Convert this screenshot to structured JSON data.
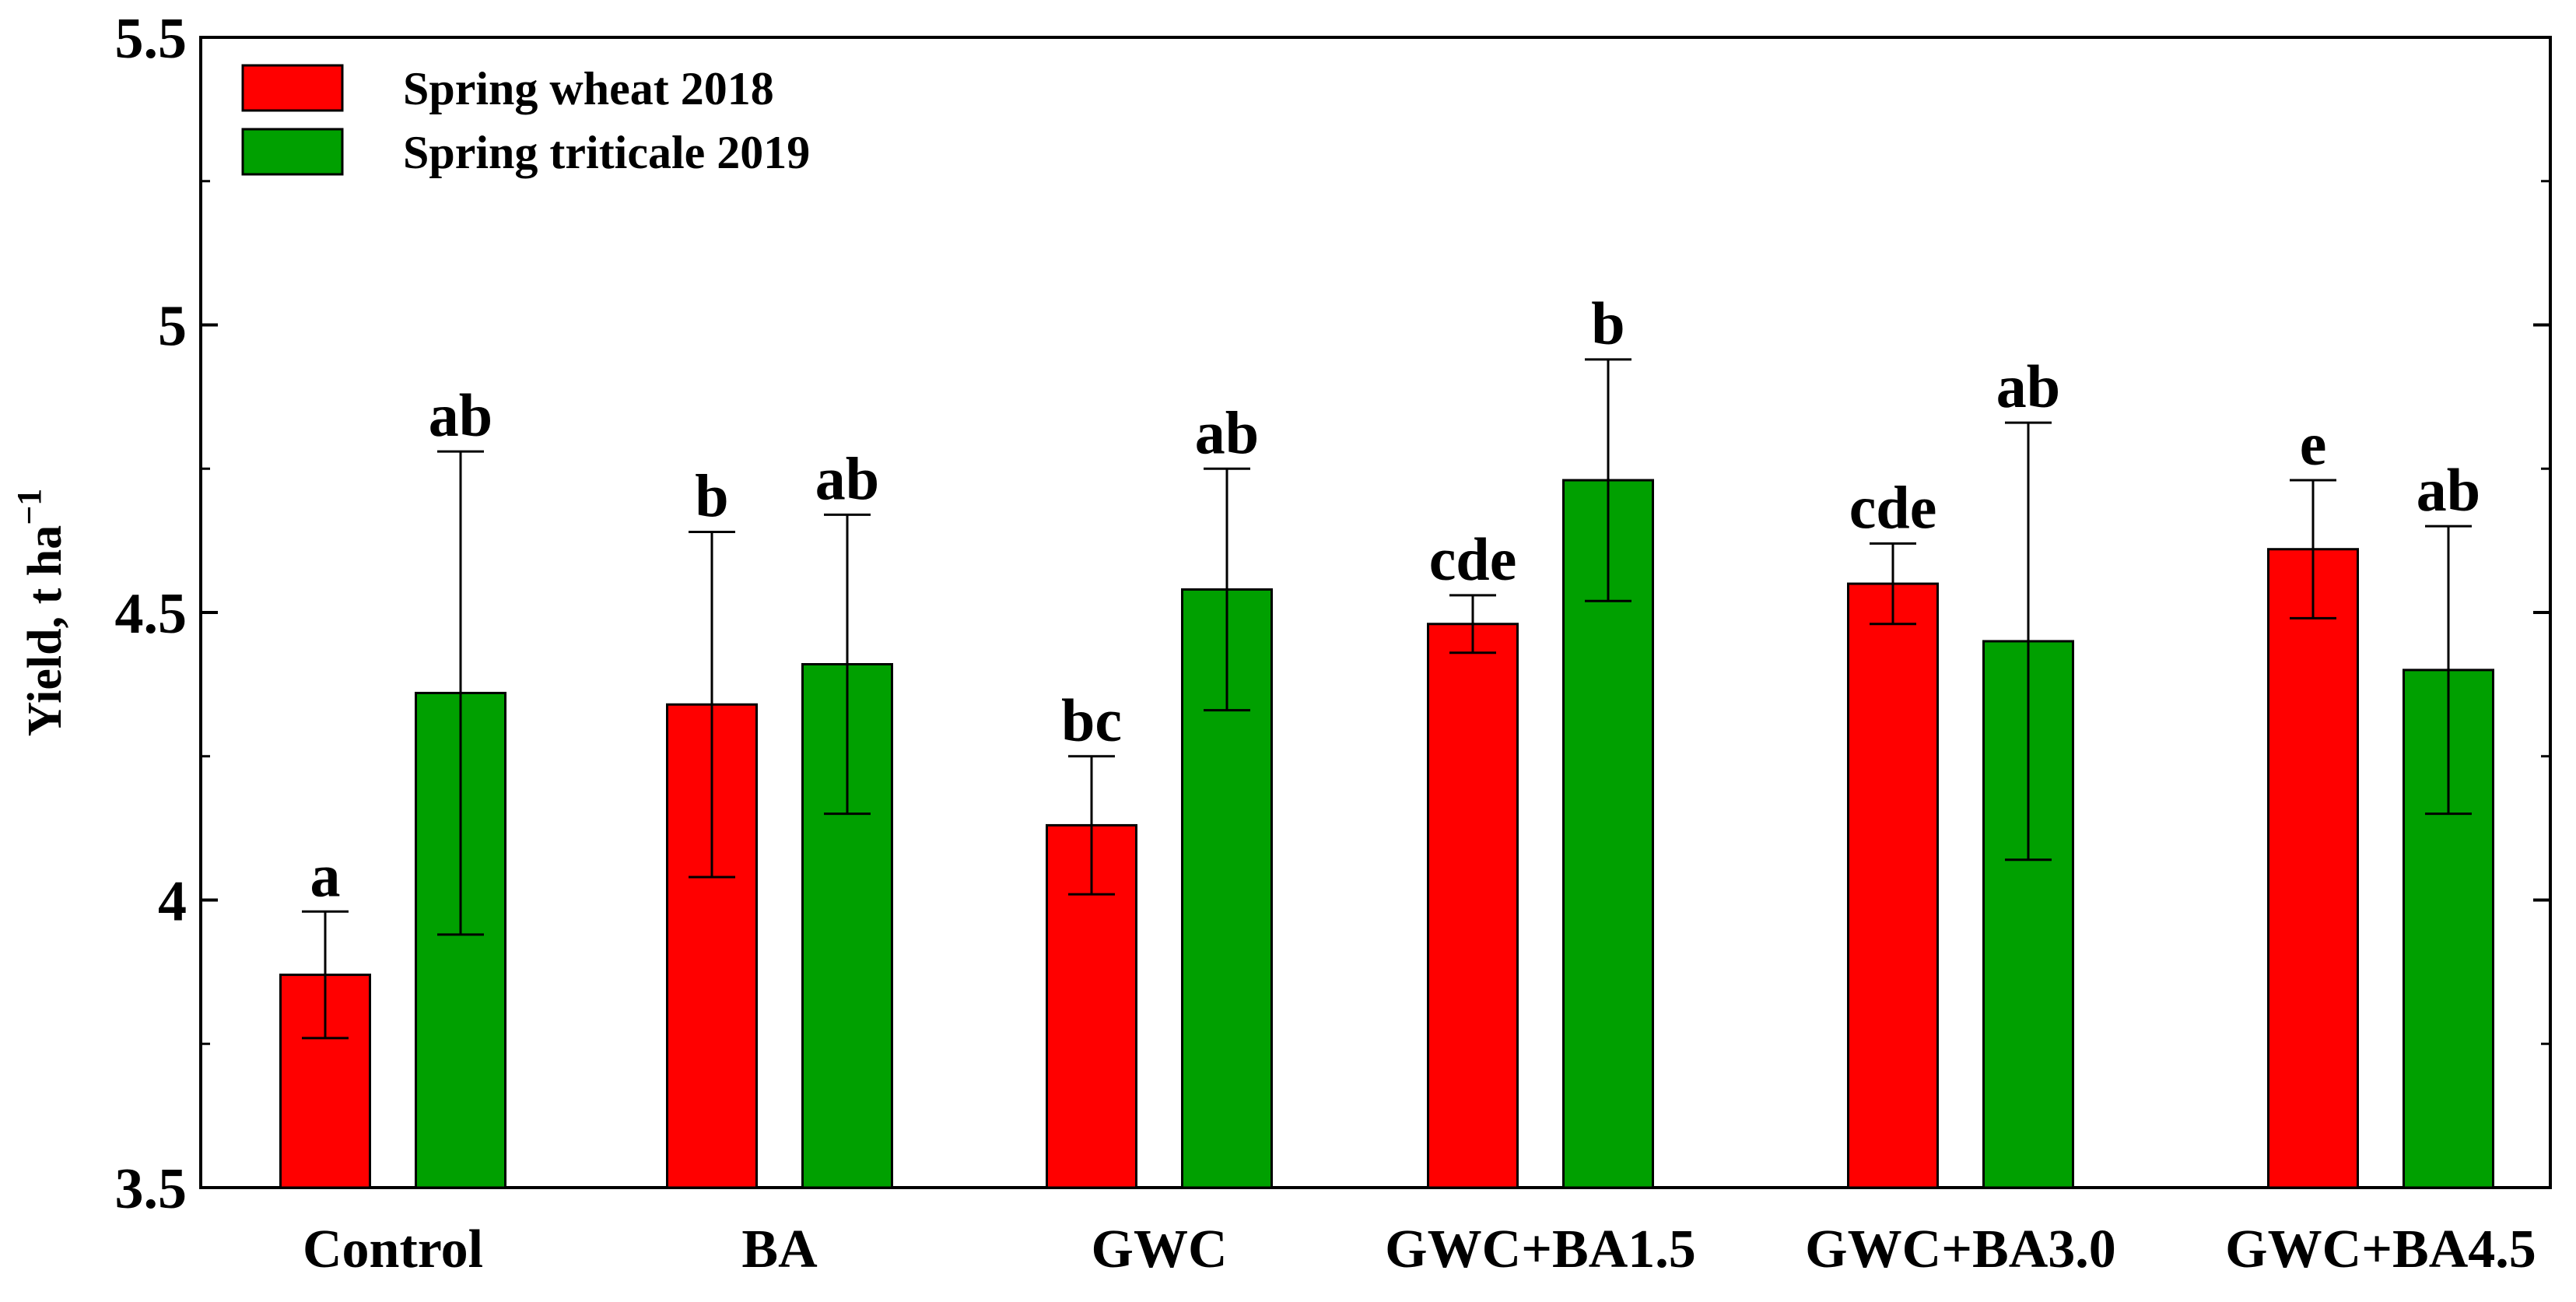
{
  "chart_data": {
    "type": "bar",
    "title": "",
    "xlabel": "",
    "ylabel": "Yield, t ha",
    "ylabel_superscript": "−1",
    "ylim": [
      3.5,
      5.5
    ],
    "yticks": [
      "3.5",
      "4",
      "4.5",
      "5",
      "5.5"
    ],
    "ytick_values": [
      3.5,
      4.0,
      4.5,
      5.0,
      5.5
    ],
    "legend_position": "top-left",
    "grid": false,
    "categories": [
      "Control",
      "BA",
      "GWC",
      "GWC+BA1.5",
      "GWC+BA3.0",
      "GWC+BA4.5"
    ],
    "series": [
      {
        "name": "Spring wheat 2018",
        "color": "#ff0000",
        "values": [
          3.87,
          4.34,
          4.13,
          4.48,
          4.55,
          4.61
        ],
        "error_upper": [
          3.98,
          4.64,
          4.25,
          4.53,
          4.62,
          4.73
        ],
        "error_lower": [
          3.76,
          4.04,
          4.01,
          4.43,
          4.48,
          4.49
        ],
        "labels": [
          "a",
          "b",
          "bc",
          "cde",
          "cde",
          "e"
        ]
      },
      {
        "name": "Spring triticale 2019",
        "color": "#00a000",
        "values": [
          4.36,
          4.41,
          4.54,
          4.73,
          4.45,
          4.4
        ],
        "error_upper": [
          4.78,
          4.67,
          4.75,
          4.94,
          4.83,
          4.65
        ],
        "error_lower": [
          3.94,
          4.15,
          4.33,
          4.52,
          4.07,
          4.15
        ],
        "labels": [
          "ab",
          "ab",
          "ab",
          "b",
          "ab",
          "ab"
        ]
      }
    ]
  }
}
